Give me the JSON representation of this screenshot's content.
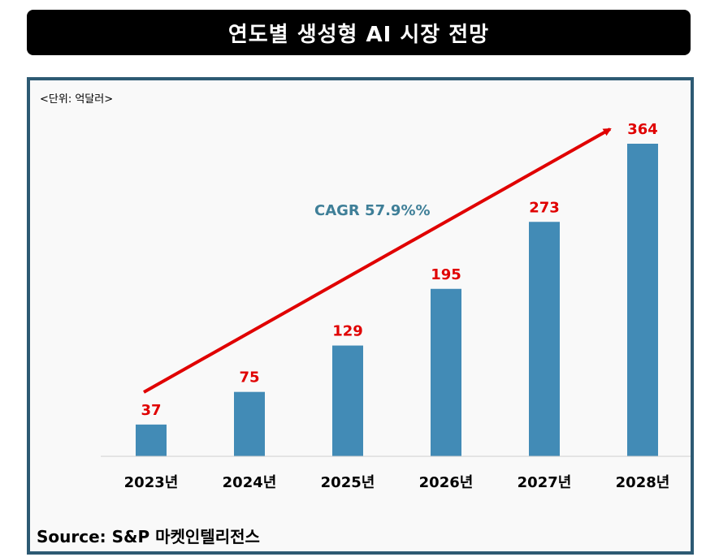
{
  "title": "연도별 생성형 AI 시장 전망",
  "unit_label": "<단위:  억달러>",
  "source": "Source: S&P 마켓인텔리전스",
  "colors": {
    "bar": "#428bb6",
    "value_label": "#e00000",
    "arrow": "#e00000",
    "cagr": "#3f7f98"
  },
  "chart_data": {
    "type": "bar",
    "categories": [
      "2023년",
      "2024년",
      "2025년",
      "2026년",
      "2027년",
      "2028년"
    ],
    "values": [
      37,
      75,
      129,
      195,
      273,
      364
    ],
    "annotation": "CAGR 57.9%%",
    "ylim": [
      0,
      400
    ],
    "grid": false,
    "legend": "none"
  }
}
